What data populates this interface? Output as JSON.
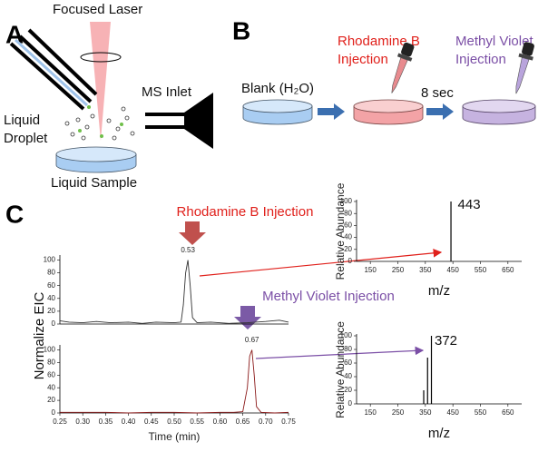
{
  "panels": {
    "a": {
      "label": "A",
      "laser": "Focused Laser",
      "droplet": [
        "Liquid",
        "Droplet"
      ],
      "inlet": "MS Inlet",
      "sample": "Liquid Sample"
    },
    "b": {
      "label": "B",
      "blank": "Blank (H₂O)",
      "rhodamine": [
        "Rhodamine B",
        "Injection"
      ],
      "delay": "8 sec",
      "violet": [
        "Methyl Violet",
        "Injection"
      ]
    },
    "c": {
      "label": "C",
      "ylabel": "Normalize EIC"
    }
  },
  "chart_data": [
    {
      "type": "line",
      "annotation": "Rhodamine B Injection",
      "annotation_color": "#e0201b",
      "peak_time": 0.53,
      "x": [
        0.25,
        0.27,
        0.3,
        0.33,
        0.36,
        0.4,
        0.43,
        0.46,
        0.5,
        0.515,
        0.52,
        0.525,
        0.53,
        0.535,
        0.54,
        0.55,
        0.58,
        0.62,
        0.66,
        0.7,
        0.73,
        0.75
      ],
      "values": [
        5,
        3,
        2,
        4,
        2,
        3,
        1,
        3,
        2,
        3,
        30,
        80,
        100,
        60,
        10,
        2,
        3,
        1,
        2,
        4,
        6,
        3
      ],
      "color": "#333333",
      "xlim": [
        0.25,
        0.75
      ],
      "ylim": [
        0,
        105
      ],
      "yticks": [
        0,
        20,
        40,
        60,
        80,
        100
      ]
    },
    {
      "type": "line",
      "annotation": "Methyl Violet Injection",
      "annotation_color": "#7b4fa6",
      "peak_time": 0.67,
      "x": [
        0.25,
        0.3,
        0.35,
        0.4,
        0.45,
        0.5,
        0.55,
        0.6,
        0.63,
        0.65,
        0.66,
        0.665,
        0.67,
        0.675,
        0.68,
        0.69,
        0.72,
        0.75
      ],
      "values": [
        1,
        1,
        1,
        0,
        1,
        1,
        0,
        1,
        1,
        2,
        40,
        90,
        100,
        60,
        10,
        1,
        0,
        1
      ],
      "color": "#8b1a1a",
      "xlim": [
        0.25,
        0.75
      ],
      "ylim": [
        0,
        105
      ],
      "yticks": [
        0,
        20,
        40,
        60,
        80,
        100
      ],
      "xticks": [
        0.25,
        {
          "value": 0.3,
          "label": "0.30"
        },
        0.35,
        {
          "value": 0.4,
          "label": "0.40"
        },
        0.45,
        {
          "value": 0.5,
          "label": "0.50"
        },
        0.55,
        {
          "value": 0.6,
          "label": "0.60"
        },
        0.65,
        {
          "value": 0.7,
          "label": "0.70"
        },
        0.75
      ],
      "xlabel": "Time (min)"
    },
    {
      "type": "bar",
      "peak_mz": 443,
      "x": [
        443
      ],
      "values": [
        100
      ],
      "color": "#000000",
      "xlim": [
        100,
        700
      ],
      "ylim": [
        0,
        100
      ],
      "yticks": [
        0,
        20,
        40,
        60,
        80,
        100
      ],
      "xticks": [
        150,
        250,
        350,
        450,
        550,
        650
      ],
      "xlabel": "m/z",
      "ylabel": "Relative Abundance"
    },
    {
      "type": "bar",
      "peak_mz": 372,
      "x": [
        344,
        358,
        372
      ],
      "values": [
        20,
        68,
        100
      ],
      "color": "#000000",
      "xlim": [
        100,
        700
      ],
      "ylim": [
        0,
        100
      ],
      "yticks": [
        0,
        20,
        40,
        60,
        80,
        100
      ],
      "xticks": [
        150,
        250,
        350,
        450,
        550,
        650
      ],
      "xlabel": "m/z",
      "ylabel": "Relative Abundance"
    }
  ]
}
